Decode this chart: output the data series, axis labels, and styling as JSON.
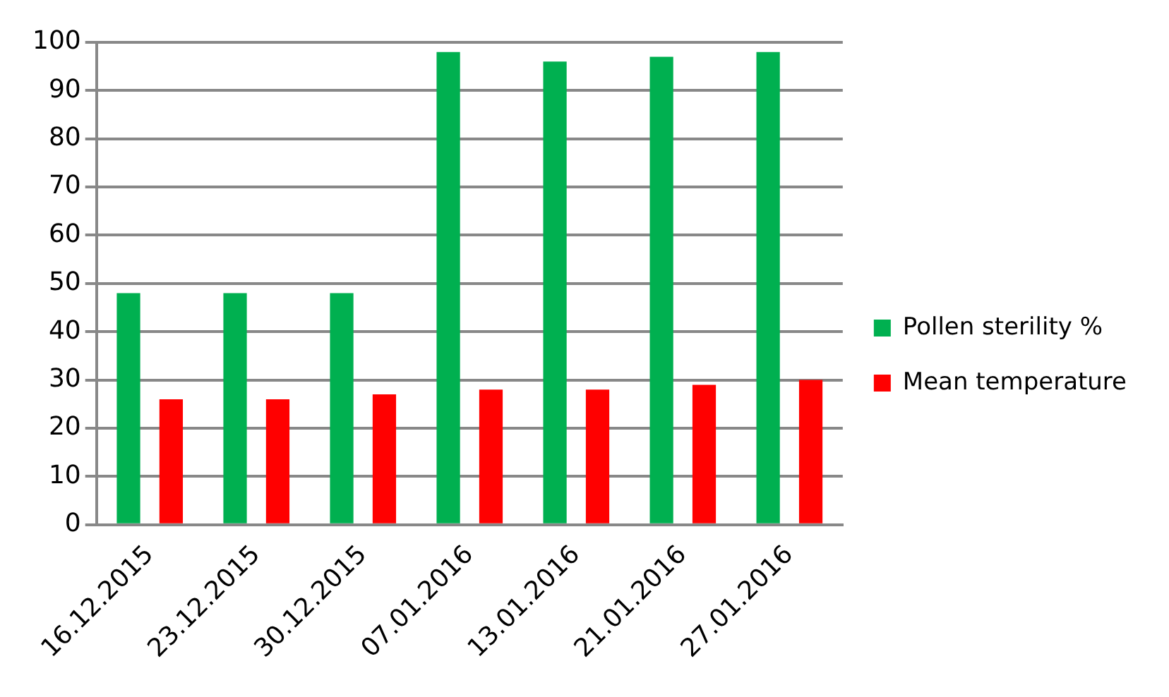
{
  "chart_data": {
    "type": "bar",
    "categories": [
      "16.12.2015",
      "23.12.2015",
      "30.12.2015",
      "07.01.2016",
      "13.01.2016",
      "21.01.2016",
      "27.01.2016"
    ],
    "series": [
      {
        "name": "Pollen sterility %",
        "color": "#00b050",
        "values": [
          48,
          48,
          48,
          98,
          96,
          97,
          98
        ]
      },
      {
        "name": "Mean temperature",
        "color": "#ff0000",
        "values": [
          26,
          26,
          27,
          28,
          28,
          29,
          30
        ]
      }
    ],
    "ylim": [
      0,
      100
    ],
    "yticks": [
      0,
      10,
      20,
      30,
      40,
      50,
      60,
      70,
      80,
      90,
      100
    ],
    "grid": "y",
    "legend": "right"
  }
}
